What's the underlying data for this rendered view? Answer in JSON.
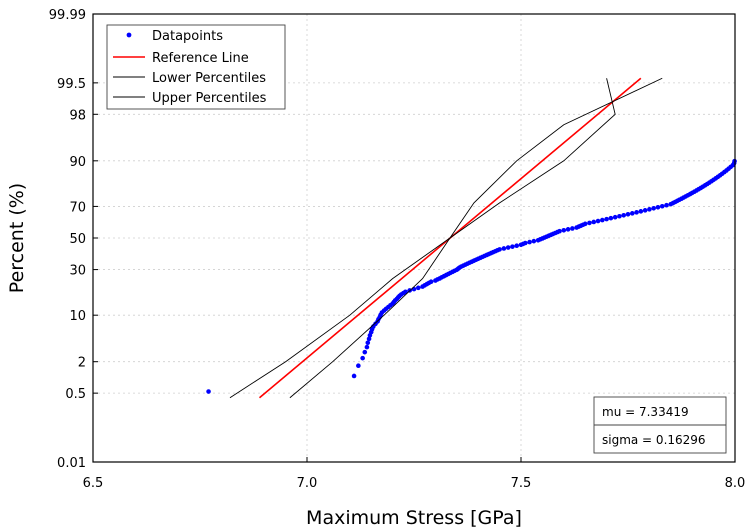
{
  "chart_data": {
    "type": "scatter",
    "title": "",
    "xlabel": "Maximum Stress [GPa]",
    "ylabel": "Percent (%)",
    "xlim": [
      6.5,
      8.0
    ],
    "ylim_percent": [
      0.01,
      99.99
    ],
    "y_scale": "normal-probability",
    "grid": true,
    "legend_position": "top-left",
    "x_ticks": [
      "6.5",
      "7.0",
      "7.5",
      "8.0"
    ],
    "y_ticks": [
      "0.01",
      "0.5",
      "2",
      "10",
      "30",
      "50",
      "70",
      "90",
      "98",
      "99.5",
      "99.99"
    ],
    "legend": [
      "Datapoints",
      "Reference Line",
      "Lower Percentiles",
      "Upper Percentiles"
    ],
    "stats": {
      "mu": "mu = 7.33419",
      "sigma": "sigma = 0.16296"
    },
    "colors": {
      "datapoints": "#0000ff",
      "reference": "#ff0000",
      "percentiles": "#000000"
    },
    "series": [
      {
        "name": "Datapoints",
        "points": [
          [
            6.77,
            0.54
          ],
          [
            7.11,
            1.1
          ],
          [
            7.12,
            1.7
          ],
          [
            7.13,
            2.3
          ],
          [
            7.135,
            2.9
          ],
          [
            7.14,
            3.5
          ],
          [
            7.142,
            4.1
          ],
          [
            7.145,
            4.7
          ],
          [
            7.147,
            5.3
          ],
          [
            7.15,
            5.9
          ],
          [
            7.152,
            6.5
          ],
          [
            7.155,
            7.1
          ],
          [
            7.16,
            7.7
          ],
          [
            7.165,
            8.3
          ],
          [
            7.167,
            8.9
          ],
          [
            7.17,
            9.5
          ],
          [
            7.172,
            10.1
          ],
          [
            7.175,
            10.8
          ],
          [
            7.18,
            11.4
          ],
          [
            7.185,
            12.0
          ],
          [
            7.19,
            12.6
          ],
          [
            7.195,
            13.2
          ],
          [
            7.2,
            13.8
          ],
          [
            7.203,
            14.4
          ],
          [
            7.206,
            15.0
          ],
          [
            7.21,
            15.6
          ],
          [
            7.213,
            16.2
          ],
          [
            7.216,
            16.8
          ],
          [
            7.22,
            17.4
          ],
          [
            7.225,
            18.0
          ],
          [
            7.23,
            18.6
          ],
          [
            7.24,
            19.2
          ],
          [
            7.25,
            19.8
          ],
          [
            7.26,
            20.4
          ],
          [
            7.27,
            21.0
          ],
          [
            7.275,
            21.6
          ],
          [
            7.28,
            22.2
          ],
          [
            7.285,
            22.8
          ],
          [
            7.29,
            23.4
          ],
          [
            7.3,
            24.0
          ],
          [
            7.305,
            24.6
          ],
          [
            7.31,
            25.1
          ],
          [
            7.315,
            25.7
          ],
          [
            7.32,
            26.3
          ],
          [
            7.325,
            26.9
          ],
          [
            7.33,
            27.5
          ],
          [
            7.335,
            28.1
          ],
          [
            7.34,
            28.7
          ],
          [
            7.345,
            29.3
          ],
          [
            7.35,
            29.9
          ],
          [
            7.353,
            30.5
          ],
          [
            7.356,
            31.1
          ],
          [
            7.36,
            31.7
          ],
          [
            7.365,
            32.3
          ],
          [
            7.37,
            32.9
          ],
          [
            7.375,
            33.5
          ],
          [
            7.38,
            34.1
          ],
          [
            7.385,
            34.7
          ],
          [
            7.39,
            35.3
          ],
          [
            7.395,
            35.9
          ],
          [
            7.4,
            36.5
          ],
          [
            7.405,
            37.1
          ],
          [
            7.41,
            37.7
          ],
          [
            7.415,
            38.3
          ],
          [
            7.42,
            38.9
          ],
          [
            7.425,
            39.5
          ],
          [
            7.43,
            40.1
          ],
          [
            7.435,
            40.7
          ],
          [
            7.44,
            41.3
          ],
          [
            7.445,
            41.9
          ],
          [
            7.45,
            42.5
          ],
          [
            7.46,
            43.1
          ],
          [
            7.47,
            43.7
          ],
          [
            7.48,
            44.3
          ],
          [
            7.49,
            44.9
          ],
          [
            7.5,
            45.5
          ],
          [
            7.505,
            46.1
          ],
          [
            7.51,
            46.7
          ],
          [
            7.52,
            47.3
          ],
          [
            7.53,
            47.9
          ],
          [
            7.54,
            48.5
          ],
          [
            7.545,
            49.1
          ],
          [
            7.55,
            49.7
          ],
          [
            7.555,
            50.3
          ],
          [
            7.56,
            50.9
          ],
          [
            7.565,
            51.5
          ],
          [
            7.57,
            52.1
          ],
          [
            7.575,
            52.7
          ],
          [
            7.58,
            53.3
          ],
          [
            7.585,
            53.9
          ],
          [
            7.59,
            54.5
          ],
          [
            7.6,
            55.1
          ],
          [
            7.61,
            55.7
          ],
          [
            7.62,
            56.3
          ],
          [
            7.63,
            56.9
          ],
          [
            7.635,
            57.5
          ],
          [
            7.64,
            58.1
          ],
          [
            7.645,
            58.7
          ],
          [
            7.65,
            59.3
          ],
          [
            7.66,
            59.9
          ],
          [
            7.67,
            60.5
          ],
          [
            7.68,
            61.1
          ],
          [
            7.69,
            61.7
          ],
          [
            7.7,
            62.3
          ],
          [
            7.71,
            62.9
          ],
          [
            7.72,
            63.5
          ],
          [
            7.73,
            64.1
          ],
          [
            7.74,
            64.7
          ],
          [
            7.75,
            65.3
          ],
          [
            7.76,
            65.9
          ],
          [
            7.77,
            66.5
          ],
          [
            7.78,
            67.1
          ],
          [
            7.79,
            67.7
          ],
          [
            7.8,
            68.3
          ],
          [
            7.81,
            68.9
          ],
          [
            7.82,
            69.5
          ],
          [
            7.83,
            70.1
          ],
          [
            7.84,
            70.7
          ],
          [
            7.85,
            71.3
          ],
          [
            7.855,
            71.9
          ],
          [
            7.86,
            72.5
          ],
          [
            7.865,
            73.1
          ],
          [
            7.87,
            73.7
          ],
          [
            7.875,
            74.3
          ],
          [
            7.88,
            74.9
          ],
          [
            7.885,
            75.5
          ],
          [
            7.89,
            76.1
          ],
          [
            7.895,
            76.7
          ],
          [
            7.9,
            77.3
          ],
          [
            7.905,
            77.9
          ],
          [
            7.91,
            78.5
          ],
          [
            7.915,
            79.1
          ],
          [
            7.92,
            79.7
          ],
          [
            7.925,
            80.3
          ],
          [
            7.93,
            80.9
          ],
          [
            7.935,
            81.5
          ],
          [
            7.94,
            82.1
          ],
          [
            7.945,
            82.7
          ],
          [
            7.95,
            83.3
          ],
          [
            7.955,
            83.9
          ],
          [
            7.96,
            84.5
          ],
          [
            7.965,
            85.1
          ],
          [
            7.97,
            85.7
          ],
          [
            7.975,
            86.3
          ],
          [
            7.98,
            86.9
          ],
          [
            7.985,
            87.5
          ],
          [
            7.99,
            88.1
          ],
          [
            7.995,
            88.7
          ],
          [
            7.998,
            89.3
          ],
          [
            7.999,
            89.9
          ]
        ]
      },
      {
        "name": "Reference Line",
        "points": [
          [
            6.889,
            0.4
          ],
          [
            7.78,
            99.6
          ]
        ]
      },
      {
        "name": "Lower Percentiles",
        "points": [
          [
            6.82,
            0.4
          ],
          [
            6.95,
            2
          ],
          [
            7.1,
            10
          ],
          [
            7.2,
            25
          ],
          [
            7.334,
            50
          ],
          [
            7.45,
            72
          ],
          [
            7.6,
            90
          ],
          [
            7.72,
            98
          ],
          [
            7.7,
            99.6
          ]
        ]
      },
      {
        "name": "Upper Percentiles",
        "points": [
          [
            6.96,
            0.4
          ],
          [
            7.06,
            2
          ],
          [
            7.18,
            10
          ],
          [
            7.27,
            25
          ],
          [
            7.334,
            50
          ],
          [
            7.39,
            72
          ],
          [
            7.49,
            90
          ],
          [
            7.6,
            97
          ],
          [
            7.83,
            99.6
          ]
        ]
      }
    ]
  }
}
